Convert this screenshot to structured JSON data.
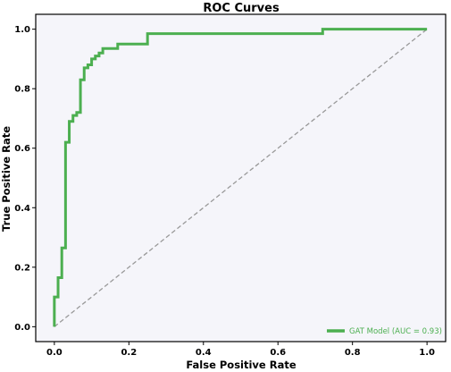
{
  "chart_data": {
    "type": "line",
    "title": "ROC Curves",
    "xlabel": "False Positive Rate",
    "ylabel": "True Positive Rate",
    "xlim": [
      -0.05,
      1.05
    ],
    "ylim": [
      -0.05,
      1.05
    ],
    "xticks": [
      "0.0",
      "0.2",
      "0.4",
      "0.6",
      "0.8",
      "1.0"
    ],
    "yticks": [
      "0.0",
      "0.2",
      "0.4",
      "0.6",
      "0.8",
      "1.0"
    ],
    "grid": false,
    "legend_position": "lower-right",
    "series": [
      {
        "name": "GAT Model (AUC = 0.93)",
        "color": "#4caf50",
        "x": [
          0,
          0,
          0.01,
          0.01,
          0.02,
          0.02,
          0.03,
          0.03,
          0.04,
          0.04,
          0.05,
          0.05,
          0.06,
          0.06,
          0.07,
          0.07,
          0.08,
          0.08,
          0.09,
          0.09,
          0.1,
          0.1,
          0.11,
          0.11,
          0.12,
          0.12,
          0.13,
          0.13,
          0.14,
          0.14,
          0.17,
          0.17,
          0.18,
          0.18,
          0.25,
          0.25,
          0.72,
          0.72,
          1.0
        ],
        "y": [
          0,
          0.1,
          0.1,
          0.165,
          0.165,
          0.265,
          0.265,
          0.62,
          0.62,
          0.69,
          0.69,
          0.71,
          0.71,
          0.72,
          0.72,
          0.83,
          0.83,
          0.87,
          0.87,
          0.88,
          0.88,
          0.9,
          0.9,
          0.91,
          0.91,
          0.92,
          0.92,
          0.935,
          0.935,
          0.935,
          0.935,
          0.95,
          0.95,
          0.95,
          0.95,
          0.985,
          0.985,
          1.0,
          1.0
        ]
      },
      {
        "color": "#999999",
        "style": "dashed",
        "x": [
          0,
          1
        ],
        "y": [
          0,
          1
        ]
      }
    ]
  }
}
